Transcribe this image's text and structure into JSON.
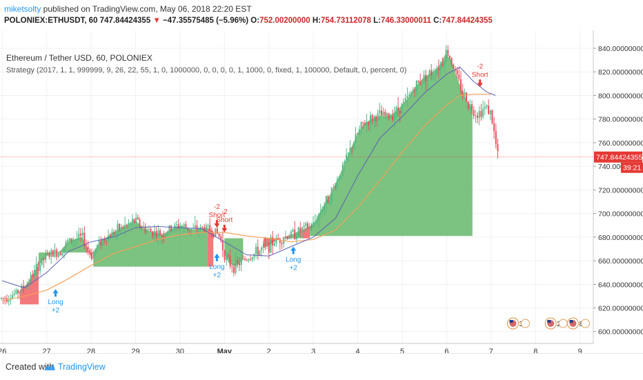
{
  "header": {
    "author": "miketsolty",
    "publish_text": " published on TradingView.com, May 06, 2018 22:20 EST",
    "symbol": "POLONIEX:ETHUSDT, 60",
    "last": "747.84424355",
    "change": "−47.35575485 (−5.96%)",
    "o_label": "O:",
    "o": "752.00200000",
    "h_label": "H:",
    "h": "754.73112078",
    "l_label": "L:",
    "l": "746.33000011",
    "c_label": "C:",
    "c": "747.84424355"
  },
  "legend": {
    "title": "Ethereum / Tether USD, 60, POLONIEX",
    "strategy": "Strategy (2017, 1, 1, 999999, 9, 26, 22, 55, 1, 0, 1000000, 0, 0, 0, 0, 1, 1000, 0, fixed, 1, 100000, Default, 0, percent, 0)"
  },
  "footer": {
    "created": "Created with",
    "brand": "TradingView"
  },
  "colors": {
    "up": "#53b987",
    "down": "#eb4d5c",
    "fill_green": "#5fb564",
    "fill_red": "#f05a5e",
    "ma_fast": "#5d62b5",
    "ma_slow": "#f5a05a",
    "signal_long": "#2196f3",
    "signal_short": "#e53935",
    "price_line": "#e53935"
  },
  "chart_data": {
    "type": "candlestick",
    "symbol": "ETHUSDT",
    "timeframe": "60",
    "y_ticks": [
      "600.00000000",
      "620.00000000",
      "640.00000000",
      "660.00000000",
      "680.00000000",
      "700.00000000",
      "720.00000000",
      "740.00000000",
      "760.00000000",
      "780.00000000",
      "800.00000000",
      "820.00000000",
      "840.00000000"
    ],
    "y_tick_values": [
      600,
      620,
      640,
      660,
      680,
      700,
      720,
      740,
      760,
      780,
      800,
      820,
      840
    ],
    "ylim": [
      594,
      847
    ],
    "x_ticks": [
      "26",
      "27",
      "28",
      "29",
      "30",
      "May",
      "2",
      "3",
      "4",
      "5",
      "6",
      "7",
      "8",
      "9"
    ],
    "x_tick_values": [
      0,
      1,
      2,
      3,
      4,
      5,
      6,
      7,
      8,
      9,
      10,
      11,
      12,
      13
    ],
    "xlim": [
      -0.05,
      13.3
    ],
    "close_path": [
      [
        0,
        628
      ],
      [
        0.3,
        632
      ],
      [
        0.55,
        640
      ],
      [
        0.8,
        655
      ],
      [
        1.0,
        664
      ],
      [
        1.15,
        666
      ],
      [
        1.3,
        668
      ],
      [
        1.5,
        677
      ],
      [
        1.8,
        680
      ],
      [
        2.0,
        664
      ],
      [
        2.2,
        676
      ],
      [
        2.5,
        684
      ],
      [
        2.8,
        690
      ],
      [
        3.0,
        694
      ],
      [
        3.2,
        687
      ],
      [
        3.4,
        684
      ],
      [
        3.6,
        682
      ],
      [
        3.8,
        687
      ],
      [
        4.0,
        690
      ],
      [
        4.3,
        686
      ],
      [
        4.6,
        688
      ],
      [
        4.8,
        684
      ],
      [
        4.9,
        680
      ],
      [
        5.0,
        666
      ],
      [
        5.1,
        658
      ],
      [
        5.25,
        655
      ],
      [
        5.4,
        660
      ],
      [
        5.6,
        664
      ],
      [
        5.8,
        669
      ],
      [
        6.0,
        673
      ],
      [
        6.2,
        678
      ],
      [
        6.5,
        682
      ],
      [
        6.8,
        687
      ],
      [
        7.0,
        690
      ],
      [
        7.2,
        705
      ],
      [
        7.35,
        714
      ],
      [
        7.5,
        725
      ],
      [
        7.7,
        742
      ],
      [
        7.9,
        760
      ],
      [
        8.1,
        775
      ],
      [
        8.3,
        780
      ],
      [
        8.5,
        783
      ],
      [
        8.7,
        782
      ],
      [
        8.9,
        788
      ],
      [
        9.1,
        796
      ],
      [
        9.3,
        808
      ],
      [
        9.5,
        816
      ],
      [
        9.7,
        820
      ],
      [
        9.9,
        828
      ],
      [
        10.0,
        838
      ],
      [
        10.1,
        830
      ],
      [
        10.3,
        808
      ],
      [
        10.5,
        792
      ],
      [
        10.7,
        784
      ],
      [
        10.8,
        788
      ],
      [
        10.9,
        790
      ],
      [
        11.0,
        784
      ],
      [
        11.1,
        760
      ],
      [
        11.15,
        749
      ]
    ],
    "ma_fast_path": [
      [
        0,
        643
      ],
      [
        0.5,
        637
      ],
      [
        1.0,
        650
      ],
      [
        1.5,
        668
      ],
      [
        2.0,
        676
      ],
      [
        2.5,
        680
      ],
      [
        3.0,
        688
      ],
      [
        3.5,
        689
      ],
      [
        4.0,
        688
      ],
      [
        4.5,
        687
      ],
      [
        5.0,
        676
      ],
      [
        5.5,
        665
      ],
      [
        6.0,
        664
      ],
      [
        6.5,
        672
      ],
      [
        7.0,
        680
      ],
      [
        7.5,
        696
      ],
      [
        8.0,
        732
      ],
      [
        8.5,
        764
      ],
      [
        9.0,
        782
      ],
      [
        9.5,
        802
      ],
      [
        10.0,
        818
      ],
      [
        10.3,
        824
      ],
      [
        10.6,
        812
      ],
      [
        10.9,
        803
      ],
      [
        11.1,
        800
      ]
    ],
    "ma_slow_path": [
      [
        0,
        626
      ],
      [
        0.5,
        630
      ],
      [
        1.0,
        635
      ],
      [
        1.5,
        645
      ],
      [
        2.0,
        656
      ],
      [
        2.5,
        666
      ],
      [
        3.0,
        672
      ],
      [
        3.5,
        678
      ],
      [
        4.0,
        682
      ],
      [
        4.5,
        684
      ],
      [
        5.0,
        684
      ],
      [
        5.5,
        681
      ],
      [
        6.0,
        679
      ],
      [
        6.5,
        676
      ],
      [
        7.0,
        678
      ],
      [
        7.5,
        686
      ],
      [
        8.0,
        705
      ],
      [
        8.5,
        728
      ],
      [
        9.0,
        752
      ],
      [
        9.5,
        774
      ],
      [
        10.0,
        792
      ],
      [
        10.3,
        800
      ],
      [
        10.6,
        801
      ],
      [
        11.0,
        801
      ]
    ],
    "fills": [
      {
        "color": "red",
        "x0": 0.4,
        "x1": 0.82,
        "y": 623
      },
      {
        "color": "green",
        "x0": 0.82,
        "x1": 1.12,
        "y": 667
      },
      {
        "color": "red",
        "x0": 1.12,
        "x1": 1.22,
        "y": 667
      },
      {
        "color": "green",
        "x0": 1.22,
        "x1": 1.9,
        "y": 667
      },
      {
        "color": "red",
        "x0": 1.9,
        "x1": 2.05,
        "y": 667
      },
      {
        "color": "green",
        "x0": 2.05,
        "x1": 4.62,
        "y": 655
      },
      {
        "color": "red",
        "x0": 4.62,
        "x1": 4.75,
        "y": 655
      },
      {
        "color": "green",
        "x0": 5.0,
        "x1": 5.42,
        "y": 679
      },
      {
        "color": "red",
        "x0": 5.88,
        "x1": 6.5,
        "y": 679
      },
      {
        "color": "green",
        "x0": 6.5,
        "x1": 6.75,
        "y": 679
      },
      {
        "color": "red",
        "x0": 6.75,
        "x1": 6.92,
        "y": 679
      },
      {
        "color": "green",
        "x0": 6.92,
        "x1": 10.58,
        "y": 681
      }
    ],
    "signals": [
      {
        "type": "long",
        "x": 1.2,
        "y": 636,
        "label": "Long",
        "qty": "+2"
      },
      {
        "type": "long",
        "x": 4.83,
        "y": 666,
        "label": "Long",
        "qty": "+2"
      },
      {
        "type": "long",
        "x": 6.55,
        "y": 672,
        "label": "Long",
        "qty": "+2"
      },
      {
        "type": "short",
        "x": 4.83,
        "y": 684,
        "label": "Short",
        "qty": "-2"
      },
      {
        "type": "short",
        "x": 5.0,
        "y": 680,
        "label": "Short",
        "qty": "-2"
      },
      {
        "type": "short",
        "x": 10.75,
        "y": 803,
        "label": "Short",
        "qty": "-2"
      }
    ],
    "last_price": 747.84424355,
    "last_price_label": "747.84424355",
    "countdown": "39:21",
    "events": [
      {
        "x": 11.6,
        "count": "3"
      },
      {
        "x": 12.45,
        "count": "2"
      },
      {
        "x": 12.95,
        "count": "8"
      }
    ],
    "grid": true
  }
}
